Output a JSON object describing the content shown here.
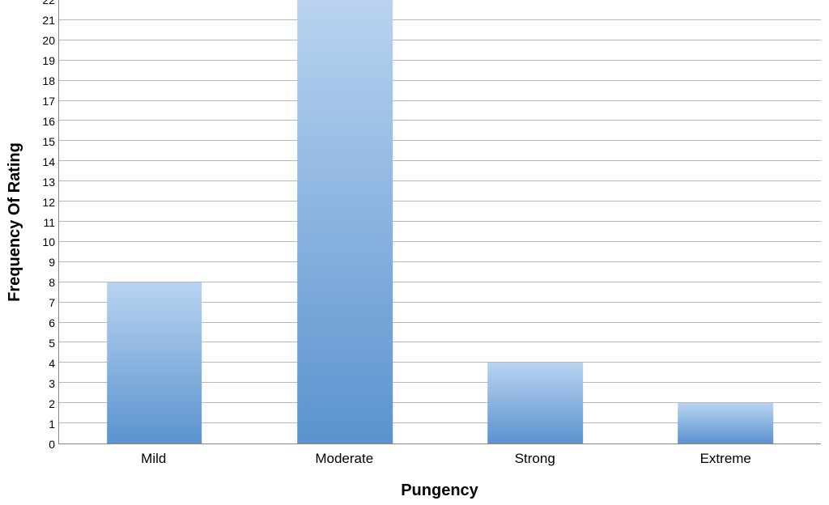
{
  "chart": {
    "type": "bar",
    "ylabel": "Frequency Of Rating",
    "xlabel": "Pungency",
    "label_fontsize": 20,
    "tick_fontsize": 14,
    "xlabel_fontsize": 17,
    "ylim": [
      0,
      22
    ],
    "ytick_step": 1,
    "background_color": "#ffffff",
    "grid_color": "#b8b8b8",
    "axis_color": "#888888",
    "bar_fill_top": "#b9d3f0",
    "bar_fill_bottom": "#5a93cf",
    "bar_width_pct": 50,
    "categories": [
      "Mild",
      "Moderate",
      "Strong",
      "Extreme"
    ],
    "values": [
      8,
      22,
      4,
      2
    ]
  }
}
